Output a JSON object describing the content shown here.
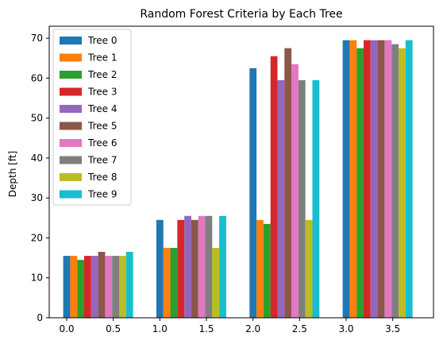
{
  "chart_data": {
    "type": "bar",
    "title": "Random Forest Criteria by Each Tree",
    "xlabel": "",
    "ylabel": "Depth [ft]",
    "xlim": [
      -0.1875,
      3.9375
    ],
    "ylim": [
      0,
      73
    ],
    "xticks": [
      0.0,
      0.5,
      1.0,
      1.5,
      2.0,
      2.5,
      3.0,
      3.5
    ],
    "xtick_labels": [
      "0.0",
      "0.5",
      "1.0",
      "1.5",
      "2.0",
      "2.5",
      "3.0",
      "3.5"
    ],
    "yticks": [
      0,
      10,
      20,
      30,
      40,
      50,
      60,
      70
    ],
    "ytick_labels": [
      "0",
      "10",
      "20",
      "30",
      "40",
      "50",
      "60",
      "70"
    ],
    "group_positions": [
      0,
      1,
      2,
      3
    ],
    "bar_width": 0.075,
    "legend_position": "top-left",
    "grid": false,
    "series": [
      {
        "name": "Tree 0",
        "color": "#1f77b4",
        "values": [
          15.5,
          24.5,
          62.5,
          69.5
        ]
      },
      {
        "name": "Tree 1",
        "color": "#ff7f0e",
        "values": [
          15.5,
          17.5,
          24.5,
          69.5
        ]
      },
      {
        "name": "Tree 2",
        "color": "#2ca02c",
        "values": [
          14.5,
          17.5,
          23.5,
          67.5
        ]
      },
      {
        "name": "Tree 3",
        "color": "#d62728",
        "values": [
          15.5,
          24.5,
          65.5,
          69.5
        ]
      },
      {
        "name": "Tree 4",
        "color": "#9467bd",
        "values": [
          15.5,
          25.5,
          59.5,
          69.5
        ]
      },
      {
        "name": "Tree 5",
        "color": "#8c564b",
        "values": [
          16.5,
          24.5,
          67.5,
          69.5
        ]
      },
      {
        "name": "Tree 6",
        "color": "#e377c2",
        "values": [
          15.5,
          25.5,
          63.5,
          69.5
        ]
      },
      {
        "name": "Tree 7",
        "color": "#7f7f7f",
        "values": [
          15.5,
          25.5,
          59.5,
          68.5
        ]
      },
      {
        "name": "Tree 8",
        "color": "#bcbd22",
        "values": [
          15.5,
          17.5,
          24.5,
          67.5
        ]
      },
      {
        "name": "Tree 9",
        "color": "#17becf",
        "values": [
          16.5,
          25.5,
          59.5,
          69.5
        ]
      }
    ]
  }
}
